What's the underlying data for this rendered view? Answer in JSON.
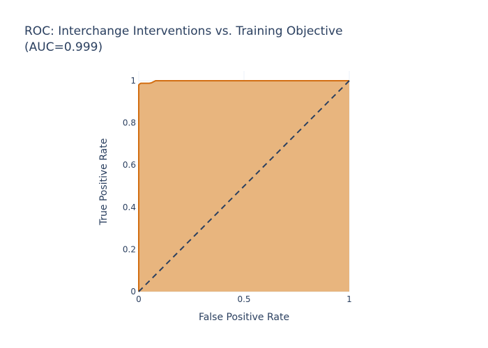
{
  "chart_data": {
    "type": "area",
    "title_line1": "ROC: Interchange Interventions vs. Training Objective",
    "title_line2": "(AUC=0.999)",
    "xlabel": "False Positive Rate",
    "ylabel": "True Positive Rate",
    "xlim": [
      0,
      1
    ],
    "ylim": [
      0,
      1
    ],
    "x_ticks": [
      "0",
      "0.5",
      "1"
    ],
    "y_ticks": [
      "0",
      "0.2",
      "0.4",
      "0.6",
      "0.8",
      "1"
    ],
    "grid": true,
    "legend": "none",
    "series": [
      {
        "x": [
          0,
          0,
          0.005,
          0.01,
          0.02,
          0.05,
          0.06,
          0.07,
          0.08,
          0.5,
          1
        ],
        "y": [
          0,
          0.98,
          0.985,
          0.988,
          0.988,
          0.988,
          0.99,
          0.995,
          1.0,
          1.0,
          1.0
        ],
        "line_color": "#d26e12",
        "fill_color": "#e8b57e"
      },
      {
        "x": [
          0,
          1
        ],
        "y": [
          0,
          1
        ],
        "line_color": "#2a3f5f",
        "dash": "dash"
      }
    ]
  }
}
